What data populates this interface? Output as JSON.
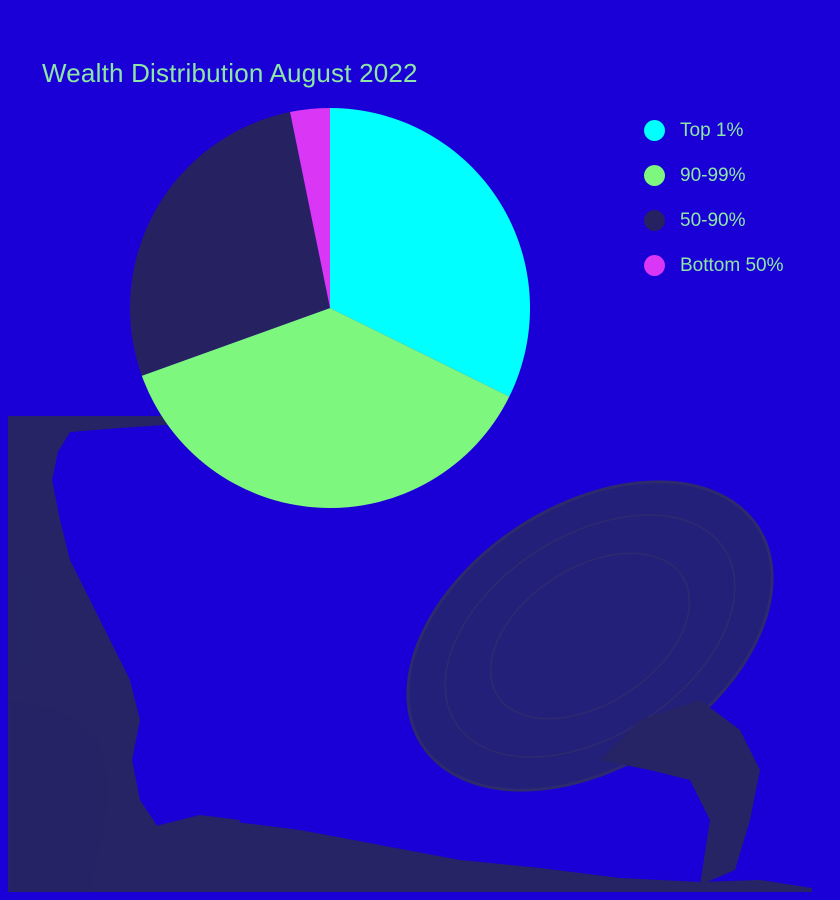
{
  "colors": {
    "background": "#1a00d6",
    "silhouette": "#262465",
    "text": "#8ee6a6"
  },
  "chart_data": {
    "type": "pie",
    "title": "Wealth Distribution August 2022",
    "legend_position": "top-right",
    "start_angle_deg": 0,
    "direction": "clockwise",
    "slices": [
      {
        "label": "Top 1%",
        "value": 32.3,
        "color": "#00ffff"
      },
      {
        "label": "90-99%",
        "value": 37.2,
        "color": "#7ef77f"
      },
      {
        "label": "50-90%",
        "value": 27.3,
        "color": "#262262"
      },
      {
        "label": "Bottom 50%",
        "value": 3.2,
        "color": "#d936f5"
      }
    ]
  }
}
